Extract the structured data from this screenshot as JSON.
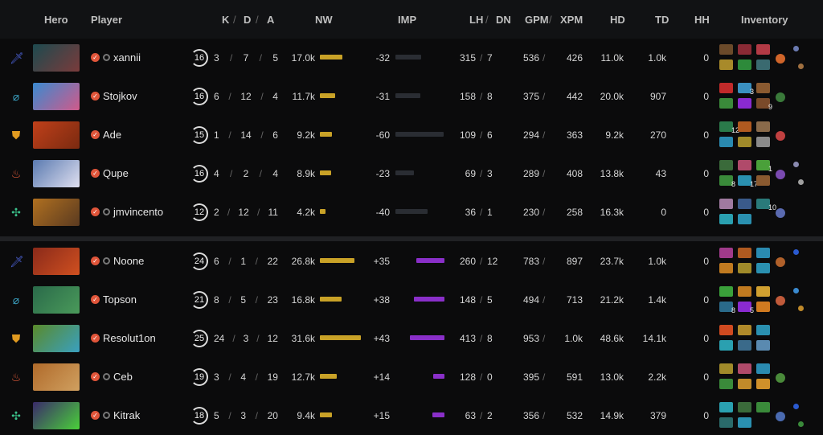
{
  "headers": {
    "hero": "Hero",
    "player": "Player",
    "k": "K",
    "d": "D",
    "a": "A",
    "nw": "NW",
    "imp": "IMP",
    "lh": "LH",
    "dn": "DN",
    "gpm": "GPM",
    "xpm": "XPM",
    "hd": "HD",
    "td": "TD",
    "hh": "HH",
    "inventory": "Inventory",
    "slash": "/"
  },
  "colors": {
    "nw_bar": "#c9a227",
    "imp_pos": "#8a2fc9",
    "imp_neg": "#2a2d33",
    "verified": "#e0553a"
  },
  "teams": [
    {
      "players": [
        {
          "role": "sword-icon",
          "role_color": "#4a5fd0",
          "hero_color": [
            "#1d4a4f",
            "#7a3b3b"
          ],
          "verified": true,
          "private": true,
          "name": "xannii",
          "level": "16",
          "k": "3",
          "d": "7",
          "a": "5",
          "nw": "17.0k",
          "nw_val": 17.0,
          "imp": "-32",
          "imp_val": -32,
          "lh": "315",
          "dn": "7",
          "gpm": "536",
          "xpm": "426",
          "hd": "11.0k",
          "td": "1.0k",
          "hh": "0",
          "items": [
            "#6b4a2a",
            "#8a2a35",
            "#b33a45",
            "#a88a2a",
            "#2d8a3a",
            "#3a6a70"
          ],
          "counts": [
            "",
            "",
            "",
            "",
            "",
            ""
          ],
          "neutral": "#d0652a",
          "backpack": [
            "#6b7ab0",
            "#a07040"
          ]
        },
        {
          "role": "bow-icon",
          "role_color": "#3aa0c0",
          "hero_color": [
            "#3a8ad0",
            "#d05a8a"
          ],
          "verified": true,
          "private": false,
          "name": "Stojkov",
          "level": "16",
          "k": "6",
          "d": "12",
          "a": "4",
          "nw": "11.7k",
          "nw_val": 11.7,
          "imp": "-31",
          "imp_val": -31,
          "lh": "158",
          "dn": "8",
          "gpm": "375",
          "xpm": "442",
          "hd": "20.0k",
          "td": "907",
          "hh": "0",
          "items": [
            "#c02a2a",
            "#3a90c0",
            "#8a5a30",
            "#3a8a3a",
            "#8a2ad0",
            "#7a4a2a"
          ],
          "counts": [
            "",
            "3",
            "",
            "",
            "",
            "9"
          ],
          "neutral": "#3a7a3a",
          "backpack": []
        },
        {
          "role": "shield-icon",
          "role_color": "#e09a20",
          "hero_color": [
            "#c0401a",
            "#7a2a10"
          ],
          "verified": true,
          "private": false,
          "name": "Ade",
          "level": "15",
          "k": "1",
          "d": "14",
          "a": "6",
          "nw": "9.2k",
          "nw_val": 9.2,
          "imp": "-60",
          "imp_val": -60,
          "lh": "109",
          "dn": "6",
          "gpm": "294",
          "xpm": "363",
          "hd": "9.2k",
          "td": "270",
          "hh": "0",
          "items": [
            "#2a7a4a",
            "#b05a20",
            "#8a6a4a",
            "#2a8ab0",
            "#a08a2a",
            "#8a8a8a"
          ],
          "counts": [
            "12",
            "",
            "",
            "",
            "",
            ""
          ],
          "neutral": "#c04040",
          "backpack": []
        },
        {
          "role": "support-icon",
          "role_color": "#e05a3a",
          "hero_color": [
            "#5a7ab0",
            "#e0e0f0"
          ],
          "verified": true,
          "private": false,
          "name": "Qupe",
          "level": "16",
          "k": "4",
          "d": "2",
          "a": "4",
          "nw": "8.9k",
          "nw_val": 8.9,
          "imp": "-23",
          "imp_val": -23,
          "lh": "69",
          "dn": "3",
          "gpm": "289",
          "xpm": "408",
          "hd": "13.8k",
          "td": "43",
          "hh": "0",
          "items": [
            "#3a6a3a",
            "#b04a6a",
            "#4aa03a",
            "#3a8a3a",
            "#2a90b0",
            "#8a5a30"
          ],
          "counts": [
            "",
            "",
            "1",
            "8",
            "17",
            ""
          ],
          "neutral": "#7a4ab0",
          "backpack": [
            "#8a8ab0",
            "#a0a0a0"
          ]
        },
        {
          "role": "hard-support-icon",
          "role_color": "#3ac08a",
          "hero_color": [
            "#b07020",
            "#5a3a20"
          ],
          "verified": true,
          "private": true,
          "name": "jmvincento",
          "level": "12",
          "k": "2",
          "d": "12",
          "a": "11",
          "nw": "4.2k",
          "nw_val": 4.2,
          "imp": "-40",
          "imp_val": -40,
          "lh": "36",
          "dn": "1",
          "gpm": "230",
          "xpm": "258",
          "hd": "16.3k",
          "td": "0",
          "hh": "0",
          "items": [
            "#a07aa0",
            "#3a5a8a",
            "#2a7a7a",
            "#2aa0b0",
            "#2a90b0",
            ""
          ],
          "counts": [
            "",
            "",
            "10",
            "",
            "",
            ""
          ],
          "neutral": "#5a6ab0",
          "backpack": []
        }
      ]
    },
    {
      "players": [
        {
          "role": "sword-icon",
          "role_color": "#4a5fd0",
          "hero_color": [
            "#8a2a1a",
            "#d05020"
          ],
          "verified": true,
          "private": true,
          "name": "Noone",
          "level": "24",
          "k": "6",
          "d": "1",
          "a": "22",
          "nw": "26.8k",
          "nw_val": 26.8,
          "imp": "+35",
          "imp_val": 35,
          "lh": "260",
          "dn": "12",
          "gpm": "783",
          "xpm": "897",
          "hd": "23.7k",
          "td": "1.0k",
          "hh": "0",
          "items": [
            "#a03a8a",
            "#b05a20",
            "#2a8ab0",
            "#c07a20",
            "#a08a2a",
            "#2a90b0"
          ],
          "counts": [
            "",
            "",
            "",
            "",
            "",
            ""
          ],
          "neutral": "#b0602a",
          "backpack": [
            "#2a5ad0"
          ]
        },
        {
          "role": "bow-icon",
          "role_color": "#3aa0c0",
          "hero_color": [
            "#2a6a4a",
            "#4a9a5a"
          ],
          "verified": true,
          "private": false,
          "name": "Topson",
          "level": "21",
          "k": "8",
          "d": "5",
          "a": "23",
          "nw": "16.8k",
          "nw_val": 16.8,
          "imp": "+38",
          "imp_val": 38,
          "lh": "148",
          "dn": "5",
          "gpm": "494",
          "xpm": "713",
          "hd": "21.2k",
          "td": "1.4k",
          "hh": "0",
          "items": [
            "#3aa03a",
            "#c07a20",
            "#d0a030",
            "#2a6a8a",
            "#8a2ad0",
            "#d07a20"
          ],
          "counts": [
            "",
            "",
            "",
            "8",
            "5",
            ""
          ],
          "neutral": "#c05a3a",
          "backpack": [
            "#3a8ad0",
            "#c08a2a"
          ]
        },
        {
          "role": "shield-icon",
          "role_color": "#e09a20",
          "hero_color": [
            "#5a8a2a",
            "#3aa0c0"
          ],
          "verified": true,
          "private": false,
          "name": "Resolut1on",
          "level": "25",
          "k": "24",
          "d": "3",
          "a": "12",
          "nw": "31.6k",
          "nw_val": 31.6,
          "imp": "+43",
          "imp_val": 43,
          "lh": "413",
          "dn": "8",
          "gpm": "953",
          "xpm": "1.0k",
          "hd": "48.6k",
          "td": "14.1k",
          "hh": "0",
          "items": [
            "#d04a20",
            "#b08a2a",
            "#2a90b0",
            "#2aa0b0",
            "#3a6a8a",
            "#5a8ab0"
          ],
          "counts": [
            "",
            "",
            "",
            "",
            "",
            ""
          ],
          "neutral": "",
          "backpack": []
        },
        {
          "role": "support-icon",
          "role_color": "#e05a3a",
          "hero_color": [
            "#b06a2a",
            "#d0a060"
          ],
          "verified": true,
          "private": true,
          "name": "Ceb",
          "level": "19",
          "k": "3",
          "d": "4",
          "a": "19",
          "nw": "12.7k",
          "nw_val": 12.7,
          "imp": "+14",
          "imp_val": 14,
          "lh": "128",
          "dn": "0",
          "gpm": "395",
          "xpm": "591",
          "hd": "13.0k",
          "td": "2.2k",
          "hh": "0",
          "items": [
            "#a08a2a",
            "#b04a6a",
            "#2a8ab0",
            "#3a8a3a",
            "#c08a2a",
            "#d0902a"
          ],
          "counts": [
            "",
            "",
            "",
            "",
            "",
            ""
          ],
          "neutral": "#4a8a3a",
          "backpack": []
        },
        {
          "role": "hard-support-icon",
          "role_color": "#3ac08a",
          "hero_color": [
            "#3a2a6a",
            "#4ad03a"
          ],
          "verified": true,
          "private": true,
          "name": "Kitrak",
          "level": "18",
          "k": "5",
          "d": "3",
          "a": "20",
          "nw": "9.4k",
          "nw_val": 9.4,
          "imp": "+15",
          "imp_val": 15,
          "lh": "63",
          "dn": "2",
          "gpm": "356",
          "xpm": "532",
          "hd": "14.9k",
          "td": "379",
          "hh": "0",
          "items": [
            "#2aa0b0",
            "#3a6a3a",
            "#3a8a3a",
            "#2a6a6a",
            "#2a90b0",
            ""
          ],
          "counts": [
            "",
            "",
            "",
            "",
            "",
            ""
          ],
          "neutral": "#4a6ab0",
          "backpack": [
            "#2a5ad0",
            "#3a8a3a"
          ]
        }
      ]
    }
  ]
}
